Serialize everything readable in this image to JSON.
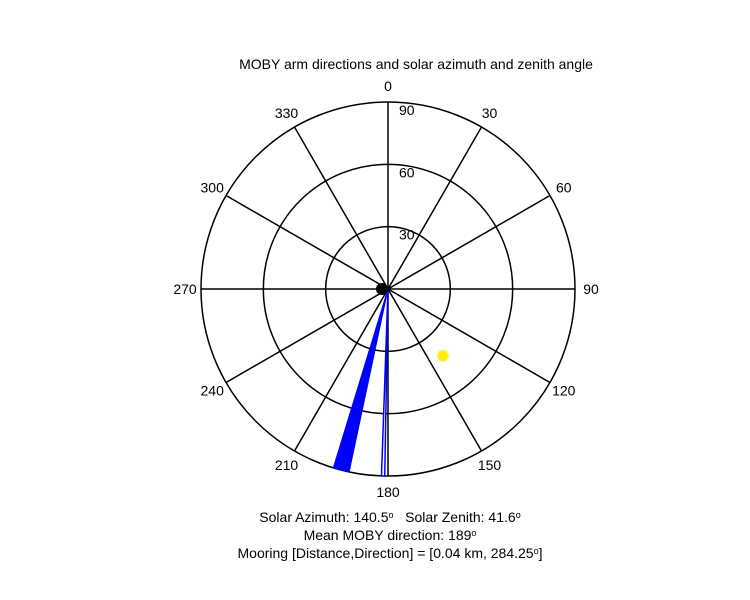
{
  "chart_data": {
    "type": "polar",
    "title": "MOBY arm directions and solar azimuth and zenith angle",
    "angular_axis": {
      "direction": "clockwise",
      "zero_at": "top",
      "tick_labels": [
        "0",
        "30",
        "60",
        "90",
        "120",
        "150",
        "180",
        "210",
        "240",
        "270",
        "300",
        "330"
      ]
    },
    "radial_axis": {
      "quantity": "zenith angle",
      "range": [
        0,
        90
      ],
      "rings": [
        30,
        60,
        90
      ],
      "tick_labels": [
        "30",
        "60",
        "90"
      ]
    },
    "moby_arms": [
      {
        "name": "arm-wedge",
        "from_deg": 192,
        "to_deg": 197,
        "radius": 90,
        "color": "#0000ff",
        "style": "filled"
      },
      {
        "name": "arm-line",
        "from_deg": 181,
        "to_deg": 182,
        "radius": 90,
        "color": "#0000ff",
        "style": "outline"
      }
    ],
    "sun": {
      "azimuth": 140.5,
      "zenith": 41.6,
      "color": "#ffee00"
    },
    "origin_marker_color": "#000000"
  },
  "footer": {
    "solar_azimuth_label": "Solar Azimuth: 140.5",
    "solar_zenith_label": "Solar Zenith: 41.6",
    "mean_moby_label": "Mean MOBY direction: 189",
    "mooring_label": "Mooring [Distance,Direction] = [0.04 km, 284.25",
    "mooring_close": "]",
    "degree_symbol": "o"
  }
}
